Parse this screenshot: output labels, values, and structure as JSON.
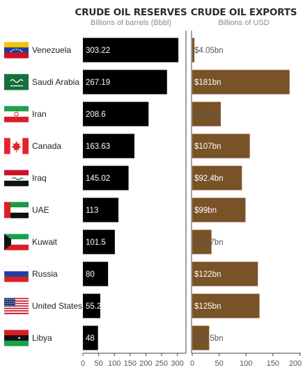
{
  "chart_data": [
    {
      "type": "bar",
      "orientation": "horizontal",
      "title": "CRUDE OIL RESERVES",
      "subtitle": "Billions of barrels (Bbbl)",
      "categories": [
        "Venezuela",
        "Saudi Arabia",
        "Iran",
        "Canada",
        "Iraq",
        "UAE",
        "Kuwait",
        "Russia",
        "United States",
        "Libya"
      ],
      "values": [
        303.22,
        267.19,
        208.6,
        163.63,
        145.02,
        113,
        101.5,
        80,
        55.2,
        48
      ],
      "value_labels": [
        "303.22",
        "267.19",
        "208.6",
        "163.63",
        "145.02",
        "113",
        "101.5",
        "80",
        "55.2",
        "48"
      ],
      "xlim": [
        0,
        310
      ],
      "ticks": [
        0,
        50,
        100,
        150,
        200,
        250,
        300
      ],
      "color": "#000000"
    },
    {
      "type": "bar",
      "orientation": "horizontal",
      "title": "CRUDE OIL EXPORTS",
      "subtitle": "Billions of USD",
      "categories": [
        "Venezuela",
        "Saudi Arabia",
        "Iran",
        "Canada",
        "Iraq",
        "UAE",
        "Kuwait",
        "Russia",
        "United States",
        "Libya"
      ],
      "values": [
        4.05,
        181,
        53,
        107,
        92.4,
        99,
        35.7,
        122,
        125,
        31.5
      ],
      "value_labels": [
        "$4.05bn",
        "$181bn",
        "$53bn",
        "$107bn",
        "$92.4bn",
        "$99bn",
        "$35.7bn",
        "$122bn",
        "$125bn",
        "$31.5bn"
      ],
      "xlim": [
        0,
        200
      ],
      "ticks": [
        0,
        50,
        100,
        150,
        200
      ],
      "color": "#7a5228"
    }
  ],
  "flags": [
    "venezuela-flag",
    "saudi-arabia-flag",
    "iran-flag",
    "canada-flag",
    "iraq-flag",
    "uae-flag",
    "kuwait-flag",
    "russia-flag",
    "united-states-flag",
    "libya-flag"
  ]
}
